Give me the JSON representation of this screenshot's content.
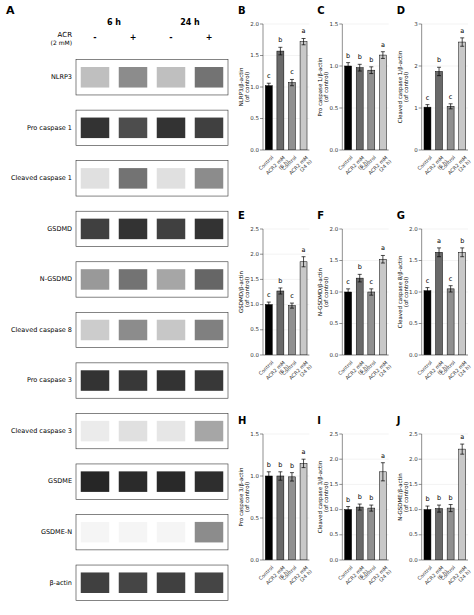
{
  "chart_data": [
    {
      "type": "blot",
      "title": "A",
      "groups": [
        "6 h",
        "24 h"
      ],
      "condition_label": "ACR",
      "categories": [
        "-",
        "+",
        "-",
        "+"
      ],
      "condition_note": "(2 mM)",
      "rows": [
        "NLRP3",
        "Pro caspase 1",
        "Cleaved caspase 1",
        "GSDMD",
        "N-GSDMD",
        "Cleaved caspase 8",
        "Pro caspase 3",
        "Cleaved caspase 3",
        "GSDME",
        "GSDME-N",
        "β-actin"
      ],
      "cells": [
        [
          [
            0.75,
            0.75,
            0.75
          ],
          [
            0.55,
            0.55,
            0.55
          ],
          [
            0.75,
            0.75,
            0.75
          ],
          [
            0.45,
            0.45,
            0.45
          ]
        ],
        [
          [
            0.2,
            0.2,
            0.2
          ],
          [
            0.3,
            0.3,
            0.3
          ],
          [
            0.2,
            0.2,
            0.2
          ],
          [
            0.25,
            0.25,
            0.25
          ]
        ],
        [
          [
            0.88,
            0.88,
            0.88
          ],
          [
            0.45,
            0.45,
            0.45
          ],
          [
            0.88,
            0.88,
            0.88
          ],
          [
            0.55,
            0.55,
            0.55
          ]
        ],
        [
          [
            0.25,
            0.25,
            0.25
          ],
          [
            0.2,
            0.2,
            0.2
          ],
          [
            0.25,
            0.25,
            0.25
          ],
          [
            0.2,
            0.2,
            0.2
          ]
        ],
        [
          [
            0.6,
            0.6,
            0.6
          ],
          [
            0.45,
            0.45,
            0.45
          ],
          [
            0.65,
            0.65,
            0.65
          ],
          [
            0.4,
            0.4,
            0.4
          ]
        ],
        [
          [
            0.8,
            0.8,
            0.8
          ],
          [
            0.55,
            0.55,
            0.55
          ],
          [
            0.78,
            0.78,
            0.78
          ],
          [
            0.5,
            0.5,
            0.5
          ]
        ],
        [
          [
            0.2,
            0.2,
            0.2
          ],
          [
            0.22,
            0.22,
            0.22
          ],
          [
            0.2,
            0.2,
            0.2
          ],
          [
            0.22,
            0.22,
            0.22
          ]
        ],
        [
          [
            0.92,
            0.92,
            0.92
          ],
          [
            0.88,
            0.88,
            0.88
          ],
          [
            0.9,
            0.9,
            0.9
          ],
          [
            0.65,
            0.65,
            0.65
          ]
        ],
        [
          [
            0.15,
            0.15,
            0.15
          ],
          [
            0.17,
            0.17,
            0.17
          ],
          [
            0.16,
            0.16,
            0.16
          ],
          [
            0.18,
            0.18,
            0.18
          ]
        ],
        [
          [
            0.96,
            0.96,
            0.96
          ],
          [
            0.96,
            0.96,
            0.96
          ],
          [
            0.96,
            0.96,
            0.96
          ],
          [
            0.55,
            0.55,
            0.55
          ]
        ],
        [
          [
            0.25,
            0.25,
            0.25
          ],
          [
            0.27,
            0.27,
            0.27
          ],
          [
            0.25,
            0.25,
            0.25
          ],
          [
            0.27,
            0.27,
            0.27
          ]
        ]
      ]
    },
    {
      "type": "bar",
      "title": "B",
      "y_label": "NLRP3/β-actin\n(of control)",
      "categories": [
        "Control",
        "ACR2 mM\n(6 h)",
        "Control",
        "ACR2 mM\n(24 h)"
      ],
      "colors": [
        "#000000",
        "#696969",
        "#909090",
        "#C8C8C8"
      ],
      "ylim": [
        0,
        2.0
      ],
      "yticks": [
        {
          "value": 0.0,
          "label": "0.0"
        },
        {
          "value": 0.5,
          "label": "0.5"
        },
        {
          "value": 1.0,
          "label": "1.0"
        },
        {
          "value": 1.5,
          "label": "1.5"
        },
        {
          "value": 2.0,
          "label": "2.0"
        }
      ],
      "values": [
        1.02,
        1.57,
        1.07,
        1.72
      ],
      "errors": [
        0.04,
        0.06,
        0.05,
        0.05
      ],
      "annotations": [
        "c",
        "b",
        "c",
        "a"
      ]
    },
    {
      "type": "bar",
      "title": "C",
      "y_label": "Pro caspase 1/β-actin\n(of control)",
      "categories": [
        "Control",
        "ACR2 mM\n(6 h)",
        "Control",
        "ACR2 mM\n(24 h)"
      ],
      "colors": [
        "#000000",
        "#696969",
        "#909090",
        "#C8C8C8"
      ],
      "ylim": [
        0,
        1.5
      ],
      "yticks": [
        {
          "value": 0.0,
          "label": "0.0"
        },
        {
          "value": 0.5,
          "label": "0.5"
        },
        {
          "value": 1.0,
          "label": "1.0"
        },
        {
          "value": 1.5,
          "label": "1.5"
        }
      ],
      "values": [
        1.0,
        0.98,
        0.95,
        1.13
      ],
      "errors": [
        0.04,
        0.04,
        0.04,
        0.04
      ],
      "annotations": [
        "b",
        "b",
        "b",
        "a"
      ]
    },
    {
      "type": "bar",
      "title": "D",
      "y_label": "Cleaved caspase 1/β-actin\n(of control)",
      "categories": [
        "Control",
        "ACR2 mM\n(6 h)",
        "Control",
        "ACR2 mM\n(24 h)"
      ],
      "colors": [
        "#000000",
        "#696969",
        "#909090",
        "#C8C8C8"
      ],
      "ylim": [
        0,
        3.0
      ],
      "yticks": [
        0,
        1,
        2,
        3
      ],
      "values": [
        1.02,
        1.87,
        1.04,
        2.57
      ],
      "errors": [
        0.06,
        0.1,
        0.06,
        0.1
      ],
      "annotations": [
        "c",
        "b",
        "c",
        "a"
      ]
    },
    {
      "type": "bar",
      "title": "E",
      "y_label": "GSDMD/β-actin\n(of control)",
      "categories": [
        "Control",
        "ACR2 mM\n(6 h)",
        "Control",
        "ACR2 mM\n(24 h)"
      ],
      "colors": [
        "#000000",
        "#696969",
        "#909090",
        "#C8C8C8"
      ],
      "ylim": [
        0,
        2.5
      ],
      "yticks": [
        {
          "value": 0.0,
          "label": "0.0"
        },
        {
          "value": 0.5,
          "label": "0.5"
        },
        {
          "value": 1.0,
          "label": "1.0"
        },
        {
          "value": 1.5,
          "label": "1.5"
        },
        {
          "value": 2.0,
          "label": "2.0"
        },
        {
          "value": 2.5,
          "label": "2.5"
        }
      ],
      "values": [
        1.0,
        1.27,
        0.98,
        1.85
      ],
      "errors": [
        0.05,
        0.06,
        0.05,
        0.1
      ],
      "annotations": [
        "c",
        "b",
        "c",
        "a"
      ]
    },
    {
      "type": "bar",
      "title": "F",
      "y_label": "N-GSDMD/β-actin\n(of control)",
      "categories": [
        "Control",
        "ACR2 mM\n(6 h)",
        "Control",
        "ACR2 mM\n(24 h)"
      ],
      "colors": [
        "#000000",
        "#696969",
        "#909090",
        "#C8C8C8"
      ],
      "ylim": [
        0,
        2.0
      ],
      "yticks": [
        {
          "value": 0.0,
          "label": "0.0"
        },
        {
          "value": 0.5,
          "label": "0.5"
        },
        {
          "value": 1.0,
          "label": "1.0"
        },
        {
          "value": 1.5,
          "label": "1.5"
        },
        {
          "value": 2.0,
          "label": "2.0"
        }
      ],
      "values": [
        1.0,
        1.22,
        1.0,
        1.52
      ],
      "errors": [
        0.05,
        0.06,
        0.05,
        0.06
      ],
      "annotations": [
        "c",
        "b",
        "c",
        "a"
      ]
    },
    {
      "type": "bar",
      "title": "G",
      "y_label": "Cleaved caspase 8/β-actin\n(of control)",
      "categories": [
        "Control",
        "ACR2 mM\n(6 h)",
        "Control",
        "ACR2 mM\n(24 h)"
      ],
      "colors": [
        "#000000",
        "#696969",
        "#909090",
        "#C8C8C8"
      ],
      "ylim": [
        0,
        2.0
      ],
      "yticks": [
        {
          "value": 0.0,
          "label": "0.0"
        },
        {
          "value": 0.5,
          "label": "0.5"
        },
        {
          "value": 1.0,
          "label": "1.0"
        },
        {
          "value": 1.5,
          "label": "1.5"
        },
        {
          "value": 2.0,
          "label": "2.0"
        }
      ],
      "values": [
        1.02,
        1.63,
        1.05,
        1.63
      ],
      "errors": [
        0.05,
        0.07,
        0.05,
        0.07
      ],
      "annotations": [
        "c",
        "a",
        "c",
        "b"
      ]
    },
    {
      "type": "bar",
      "title": "H",
      "y_label": "Pro caspase 3/β-actin\n(of control)",
      "categories": [
        "Control",
        "ACR2 mM\n(6 h)",
        "Control",
        "ACR2 mM\n(24 h)"
      ],
      "colors": [
        "#000000",
        "#696969",
        "#909090",
        "#C8C8C8"
      ],
      "ylim": [
        0,
        1.5
      ],
      "yticks": [
        {
          "value": 0.0,
          "label": "0.0"
        },
        {
          "value": 0.5,
          "label": "0.5"
        },
        {
          "value": 1.0,
          "label": "1.0"
        },
        {
          "value": 1.5,
          "label": "1.5"
        }
      ],
      "values": [
        1.0,
        1.0,
        0.99,
        1.15
      ],
      "errors": [
        0.05,
        0.05,
        0.05,
        0.05
      ],
      "annotations": [
        "b",
        "b",
        "b",
        "a"
      ]
    },
    {
      "type": "bar",
      "title": "I",
      "y_label": "Cleaved caspase 3/β-actin\n(of control)",
      "categories": [
        "Control",
        "ACR2 mM\n(6 h)",
        "Control",
        "ACR2 mM\n(24 h)"
      ],
      "colors": [
        "#000000",
        "#696969",
        "#909090",
        "#C8C8C8"
      ],
      "ylim": [
        0,
        2.5
      ],
      "yticks": [
        {
          "value": 0.0,
          "label": "0.0"
        },
        {
          "value": 0.5,
          "label": "0.5"
        },
        {
          "value": 1.0,
          "label": "1.0"
        },
        {
          "value": 1.5,
          "label": "1.5"
        },
        {
          "value": 2.0,
          "label": "2.0"
        },
        {
          "value": 2.5,
          "label": "2.5"
        }
      ],
      "values": [
        1.0,
        1.05,
        1.03,
        1.75
      ],
      "errors": [
        0.06,
        0.06,
        0.06,
        0.18
      ],
      "annotations": [
        "b",
        "b",
        "b",
        "a"
      ]
    },
    {
      "type": "bar",
      "title": "J",
      "y_label": "N-GSDME/β-actin\n(of control)",
      "categories": [
        "Control",
        "ACR2 mM\n(6 h)",
        "Control",
        "ACR2 mM\n(24 h)"
      ],
      "colors": [
        "#000000",
        "#696969",
        "#909090",
        "#C8C8C8"
      ],
      "ylim": [
        0,
        2.5
      ],
      "yticks": [
        {
          "value": 0.0,
          "label": "0.0"
        },
        {
          "value": 0.5,
          "label": "0.5"
        },
        {
          "value": 1.0,
          "label": "1.0"
        },
        {
          "value": 1.5,
          "label": "1.5"
        },
        {
          "value": 2.0,
          "label": "2.0"
        },
        {
          "value": 2.5,
          "label": "2.5"
        }
      ],
      "values": [
        1.0,
        1.02,
        1.03,
        2.2
      ],
      "errors": [
        0.07,
        0.07,
        0.07,
        0.1
      ],
      "annotations": [
        "b",
        "b",
        "b",
        "a"
      ]
    }
  ]
}
